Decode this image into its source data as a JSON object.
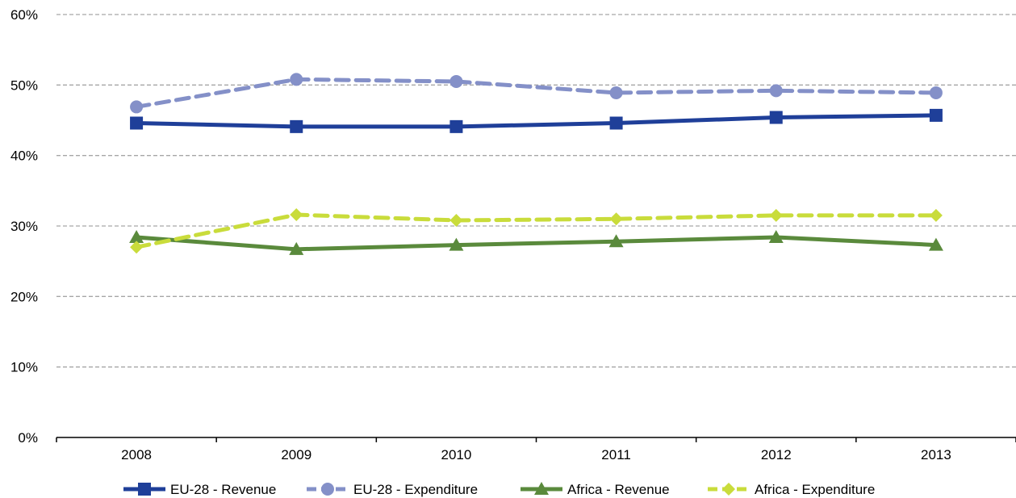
{
  "chart_data": {
    "type": "line",
    "title": "",
    "xlabel": "",
    "ylabel": "",
    "categories": [
      "2008",
      "2009",
      "2010",
      "2011",
      "2012",
      "2013"
    ],
    "ylim": [
      0,
      60
    ],
    "yticks": [
      0,
      10,
      20,
      30,
      40,
      50,
      60
    ],
    "ytick_labels": [
      "0%",
      "10%",
      "20%",
      "30%",
      "40%",
      "50%",
      "60%"
    ],
    "grid": true,
    "legend_position": "bottom",
    "series": [
      {
        "name": "EU-28 - Revenue",
        "values": [
          44.6,
          44.1,
          44.1,
          44.6,
          45.4,
          45.7
        ],
        "color": "#1f3f99",
        "dashed": false,
        "marker": "square"
      },
      {
        "name": "EU-28 - Expenditure",
        "values": [
          46.9,
          50.8,
          50.5,
          48.9,
          49.2,
          48.9
        ],
        "color": "#8490c8",
        "dashed": true,
        "marker": "circle"
      },
      {
        "name": "Africa - Revenue",
        "values": [
          28.4,
          26.7,
          27.3,
          27.8,
          28.4,
          27.3
        ],
        "color": "#5a8a3c",
        "dashed": false,
        "marker": "triangle"
      },
      {
        "name": "Africa - Expenditure",
        "values": [
          27.0,
          31.6,
          30.8,
          31.0,
          31.5,
          31.5
        ],
        "color": "#c9dc3b",
        "dashed": true,
        "marker": "diamond"
      }
    ]
  }
}
